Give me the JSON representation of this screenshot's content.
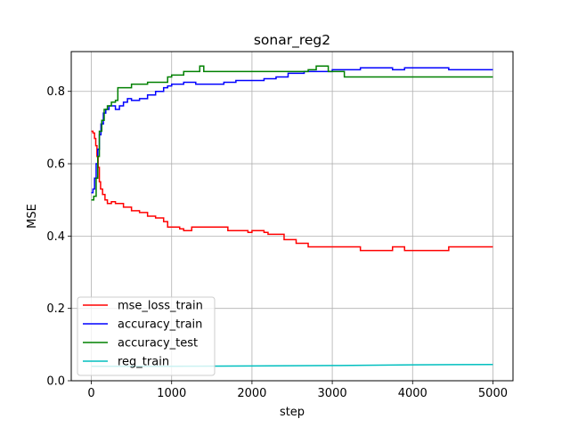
{
  "chart_data": {
    "type": "line",
    "title": "sonar_reg2",
    "xlabel": "step",
    "ylabel": "MSE",
    "xlim": [
      -250,
      5250
    ],
    "ylim": [
      0.0,
      0.91
    ],
    "x_ticks": [
      0,
      1000,
      2000,
      3000,
      4000,
      5000
    ],
    "y_ticks": [
      0.0,
      0.2,
      0.4,
      0.6,
      0.8
    ],
    "grid": true,
    "legend_position": "lower-left",
    "series": [
      {
        "name": "mse_loss_train",
        "color": "#ff0000",
        "step": true,
        "points": [
          [
            0,
            0.69
          ],
          [
            20,
            0.685
          ],
          [
            40,
            0.67
          ],
          [
            55,
            0.65
          ],
          [
            70,
            0.62
          ],
          [
            85,
            0.59
          ],
          [
            100,
            0.55
          ],
          [
            115,
            0.53
          ],
          [
            140,
            0.515
          ],
          [
            170,
            0.5
          ],
          [
            200,
            0.49
          ],
          [
            250,
            0.495
          ],
          [
            300,
            0.49
          ],
          [
            350,
            0.49
          ],
          [
            400,
            0.48
          ],
          [
            500,
            0.47
          ],
          [
            600,
            0.465
          ],
          [
            700,
            0.455
          ],
          [
            800,
            0.45
          ],
          [
            900,
            0.44
          ],
          [
            950,
            0.425
          ],
          [
            1100,
            0.42
          ],
          [
            1150,
            0.415
          ],
          [
            1250,
            0.425
          ],
          [
            1500,
            0.425
          ],
          [
            1700,
            0.415
          ],
          [
            1950,
            0.41
          ],
          [
            2000,
            0.415
          ],
          [
            2150,
            0.41
          ],
          [
            2200,
            0.405
          ],
          [
            2400,
            0.39
          ],
          [
            2550,
            0.38
          ],
          [
            2700,
            0.37
          ],
          [
            3000,
            0.37
          ],
          [
            3300,
            0.37
          ],
          [
            3350,
            0.36
          ],
          [
            3750,
            0.37
          ],
          [
            3900,
            0.36
          ],
          [
            4450,
            0.37
          ],
          [
            5000,
            0.37
          ]
        ]
      },
      {
        "name": "accuracy_train",
        "color": "#0000ff",
        "step": true,
        "points": [
          [
            0,
            0.52
          ],
          [
            20,
            0.53
          ],
          [
            40,
            0.56
          ],
          [
            60,
            0.6
          ],
          [
            80,
            0.64
          ],
          [
            100,
            0.68
          ],
          [
            120,
            0.71
          ],
          [
            150,
            0.74
          ],
          [
            180,
            0.75
          ],
          [
            220,
            0.76
          ],
          [
            300,
            0.75
          ],
          [
            350,
            0.76
          ],
          [
            400,
            0.77
          ],
          [
            450,
            0.78
          ],
          [
            500,
            0.775
          ],
          [
            600,
            0.78
          ],
          [
            700,
            0.79
          ],
          [
            800,
            0.8
          ],
          [
            900,
            0.81
          ],
          [
            950,
            0.815
          ],
          [
            1000,
            0.82
          ],
          [
            1100,
            0.82
          ],
          [
            1150,
            0.825
          ],
          [
            1300,
            0.82
          ],
          [
            1450,
            0.82
          ],
          [
            1550,
            0.82
          ],
          [
            1650,
            0.825
          ],
          [
            1800,
            0.83
          ],
          [
            1950,
            0.83
          ],
          [
            2150,
            0.835
          ],
          [
            2300,
            0.84
          ],
          [
            2450,
            0.85
          ],
          [
            2650,
            0.855
          ],
          [
            3000,
            0.86
          ],
          [
            3300,
            0.86
          ],
          [
            3350,
            0.865
          ],
          [
            3750,
            0.86
          ],
          [
            3900,
            0.865
          ],
          [
            4450,
            0.86
          ],
          [
            5000,
            0.86
          ]
        ]
      },
      {
        "name": "accuracy_test",
        "color": "#008000",
        "step": true,
        "points": [
          [
            0,
            0.5
          ],
          [
            30,
            0.51
          ],
          [
            60,
            0.56
          ],
          [
            80,
            0.62
          ],
          [
            100,
            0.69
          ],
          [
            130,
            0.72
          ],
          [
            160,
            0.75
          ],
          [
            200,
            0.76
          ],
          [
            250,
            0.77
          ],
          [
            300,
            0.775
          ],
          [
            330,
            0.81
          ],
          [
            400,
            0.81
          ],
          [
            500,
            0.82
          ],
          [
            700,
            0.825
          ],
          [
            950,
            0.84
          ],
          [
            1000,
            0.845
          ],
          [
            1150,
            0.855
          ],
          [
            1350,
            0.87
          ],
          [
            1400,
            0.855
          ],
          [
            1800,
            0.855
          ],
          [
            2700,
            0.86
          ],
          [
            2800,
            0.87
          ],
          [
            2900,
            0.87
          ],
          [
            2950,
            0.855
          ],
          [
            3150,
            0.84
          ],
          [
            3200,
            0.84
          ],
          [
            5000,
            0.84
          ]
        ]
      },
      {
        "name": "reg_train",
        "color": "#00bfbf",
        "step": false,
        "points": [
          [
            0,
            0.04
          ],
          [
            1000,
            0.04
          ],
          [
            2000,
            0.041
          ],
          [
            3000,
            0.042
          ],
          [
            4000,
            0.044
          ],
          [
            5000,
            0.045
          ]
        ]
      }
    ]
  }
}
